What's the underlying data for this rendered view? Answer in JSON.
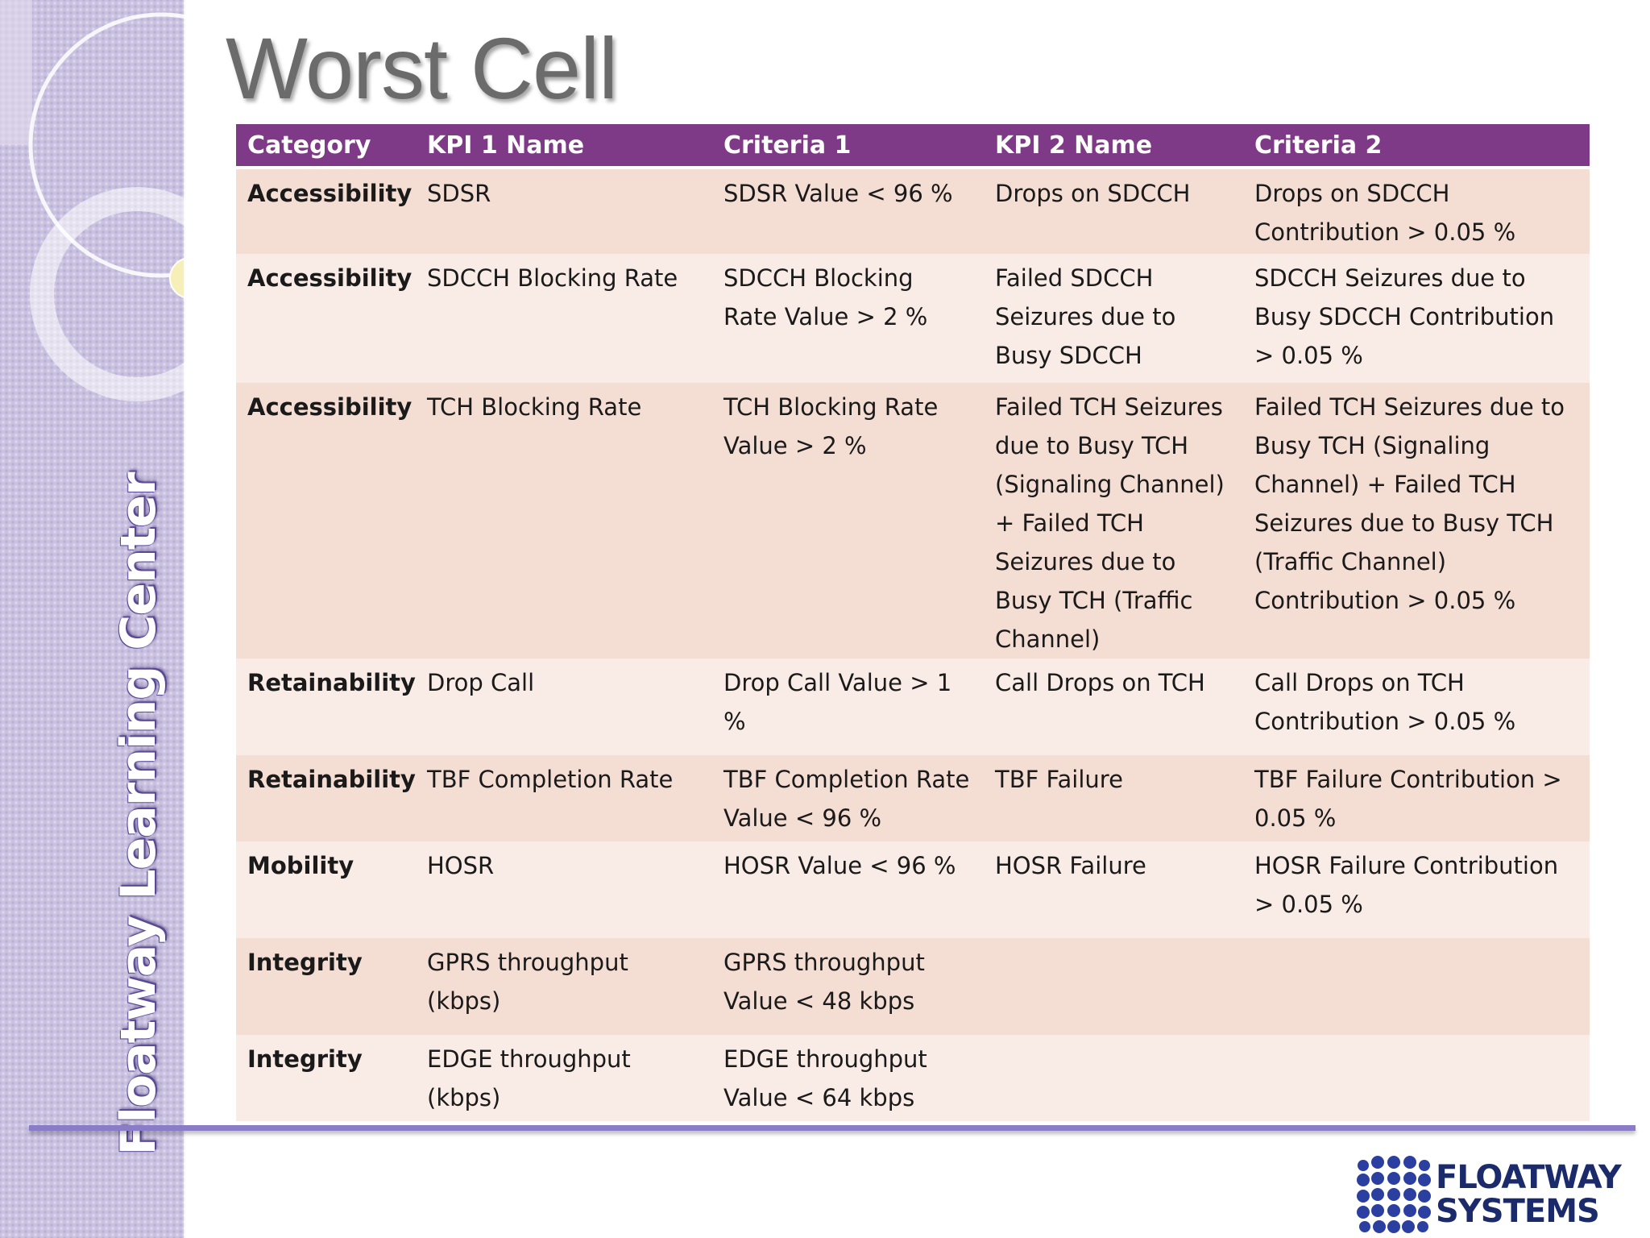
{
  "page": {
    "title": "Worst Cell",
    "vertical_brand": "Floatway Learning Center"
  },
  "table": {
    "headers": [
      "Category",
      "KPI 1 Name",
      "Criteria 1",
      "KPI 2 Name",
      "Criteria 2"
    ],
    "rows": [
      {
        "category": "Accessibility",
        "kpi1": "SDSR",
        "criteria1": "SDSR Value < 96 %",
        "kpi2": "Drops on SDCCH",
        "criteria2": "Drops on SDCCH Contribution > 0.05 %"
      },
      {
        "category": "Accessibility",
        "kpi1": "SDCCH Blocking Rate",
        "criteria1": "SDCCH Blocking Rate Value > 2 %",
        "kpi2": "Failed SDCCH Seizures due to Busy SDCCH",
        "criteria2": "SDCCH Seizures due to Busy SDCCH Contribution > 0.05 %"
      },
      {
        "category": "Accessibility",
        "kpi1": "TCH Blocking Rate",
        "criteria1": "TCH Blocking Rate Value > 2 %",
        "kpi2": "Failed TCH Seizures due to Busy TCH (Signaling Channel) + Failed TCH Seizures due to Busy TCH (Traffic Channel)",
        "criteria2": "Failed TCH Seizures due to Busy TCH (Signaling Channel) + Failed TCH Seizures due to Busy TCH (Traffic Channel) Contribution > 0.05 %"
      },
      {
        "category": "Retainability",
        "kpi1": "Drop Call",
        "criteria1": "Drop Call Value > 1 %",
        "kpi2": "Call Drops on TCH",
        "criteria2": "Call Drops on TCH Contribution > 0.05 %"
      },
      {
        "category": "Retainability",
        "kpi1": "TBF Completion Rate",
        "criteria1": "TBF Completion Rate Value < 96 %",
        "kpi2": "TBF Failure",
        "criteria2": "TBF Failure Contribution > 0.05 %"
      },
      {
        "category": "Mobility",
        "kpi1": "HOSR",
        "criteria1": "HOSR Value < 96 %",
        "kpi2": "HOSR Failure",
        "criteria2": "HOSR Failure Contribution > 0.05 %"
      },
      {
        "category": "Integrity",
        "kpi1": "GPRS throughput (kbps)",
        "criteria1": "GPRS throughput Value < 48 kbps",
        "kpi2": "",
        "criteria2": ""
      },
      {
        "category": "Integrity",
        "kpi1": "EDGE throughput (kbps)",
        "criteria1": "EDGE throughput Value < 64 kbps",
        "kpi2": "",
        "criteria2": ""
      }
    ]
  },
  "logo": {
    "line1": "FLOATWAY",
    "line2": "SYSTEMS"
  },
  "colors": {
    "header_bg": "#7e3a86",
    "row_odd": "#f4ddd3",
    "row_even": "#f9ebe5",
    "footer_rule": "#8b7cc7",
    "logo_blue": "#2a3fa0",
    "title_text": "#6b6b6b"
  }
}
